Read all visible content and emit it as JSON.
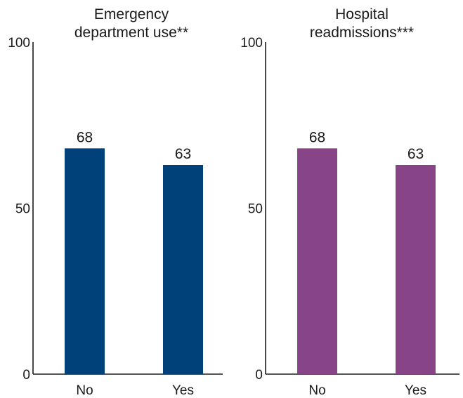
{
  "chart_data": [
    {
      "type": "bar",
      "title": "Emergency\ndepartment use**",
      "categories": [
        "No",
        "Yes"
      ],
      "values": [
        68,
        63
      ],
      "data_labels": [
        "68",
        "63"
      ],
      "ylim": [
        0,
        100
      ],
      "yticks": [
        "0",
        "50",
        "100"
      ],
      "grid": false,
      "color": "#00417a"
    },
    {
      "type": "bar",
      "title": "Hospital\nreadmissions***",
      "categories": [
        "No",
        "Yes"
      ],
      "values": [
        68,
        63
      ],
      "data_labels": [
        "68",
        "63"
      ],
      "ylim": [
        0,
        100
      ],
      "yticks": [
        "0",
        "50",
        "100"
      ],
      "grid": false,
      "color": "#874587"
    }
  ]
}
